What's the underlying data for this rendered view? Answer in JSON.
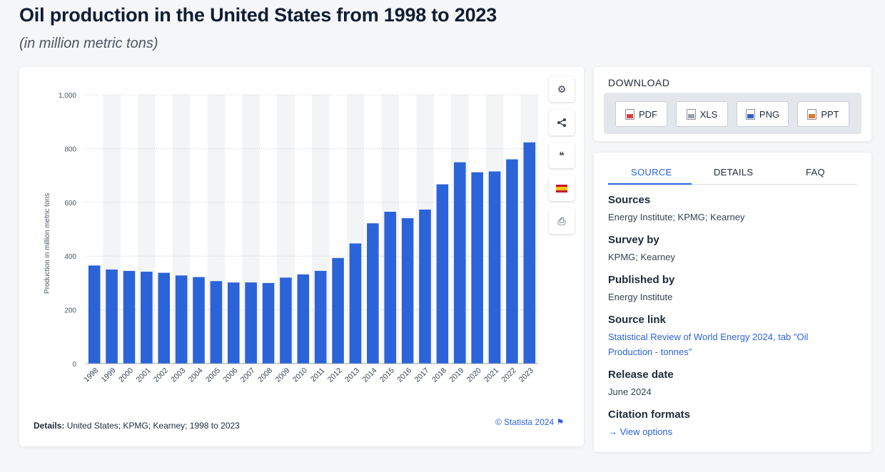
{
  "header": {
    "title": "Oil production in the United States from 1998 to 2023",
    "subtitle": "(in million metric tons)"
  },
  "chart_data": {
    "type": "bar",
    "categories": [
      "1998",
      "1999",
      "2000",
      "2001",
      "2002",
      "2003",
      "2004",
      "2005",
      "2006",
      "2007",
      "2008",
      "2009",
      "2010",
      "2011",
      "2012",
      "2013",
      "2014",
      "2015",
      "2016",
      "2017",
      "2018",
      "2019",
      "2020",
      "2021",
      "2022",
      "2023"
    ],
    "values": [
      365,
      350,
      345,
      342,
      338,
      328,
      322,
      307,
      302,
      302,
      300,
      320,
      332,
      345,
      393,
      447,
      522,
      565,
      541,
      573,
      667,
      749,
      712,
      715,
      760,
      823
    ],
    "title": "",
    "xlabel": "",
    "ylabel": "Production in million metric tons",
    "ylim": [
      0,
      1000
    ],
    "yticks": [
      0,
      200,
      400,
      600,
      800,
      1000
    ],
    "ytick_labels": [
      "0",
      "200",
      "400",
      "600",
      "800",
      "1,000"
    ],
    "grid": true,
    "bar_color": "#2b63d9"
  },
  "chart_footer": {
    "details_label": "Details:",
    "details_text": "United States; KPMG; Kearney; 1998 to 2023",
    "copyright": "© Statista 2024 ⚑"
  },
  "toolbar": {
    "settings_icon": "⚙",
    "share_icon": "⋖",
    "cite_icon": "❝",
    "flag_icon": "flag-icon",
    "print_icon": "⎙"
  },
  "download": {
    "title": "DOWNLOAD",
    "buttons": [
      "PDF",
      "XLS",
      "PNG",
      "PPT"
    ]
  },
  "source_panel": {
    "tabs": [
      "SOURCE",
      "DETAILS",
      "FAQ"
    ],
    "sources_head": "Sources",
    "sources_val": "Energy Institute; KPMG; Kearney",
    "survey_head": "Survey by",
    "survey_val": "KPMG; Kearney",
    "published_head": "Published by",
    "published_val": "Energy Institute",
    "link_head": "Source link",
    "link_val": "Statistical Review of World Energy 2024, tab \"Oil Production - tonnes\"",
    "release_head": "Release date",
    "release_val": "June 2024",
    "citation_head": "Citation formats",
    "citation_val": "→ View options"
  }
}
